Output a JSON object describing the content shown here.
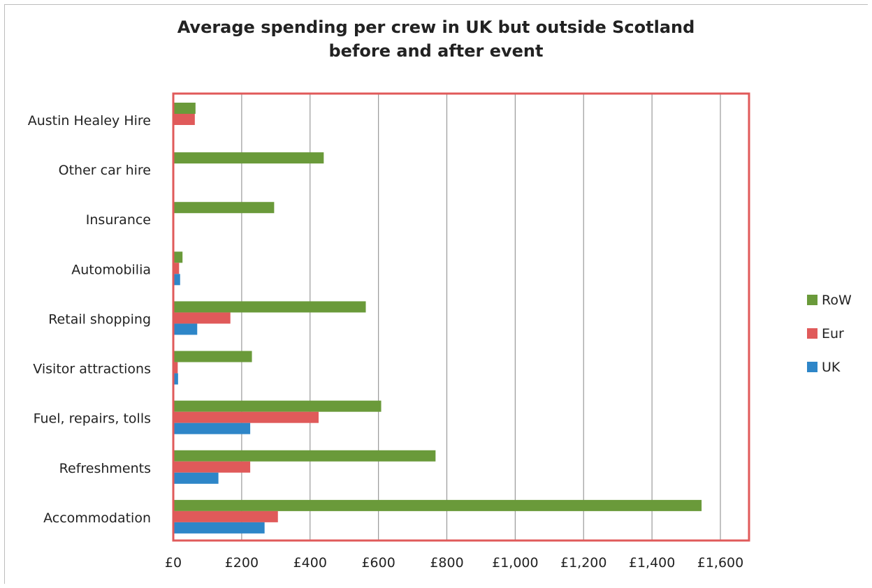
{
  "chart_data": {
    "type": "bar",
    "orientation": "horizontal",
    "title_lines": [
      "Average spending per crew in UK but outside Scotland",
      "before and after event"
    ],
    "categories": [
      "Austin Healey Hire",
      "Other car hire",
      "Insurance",
      "Automobilia",
      "Retail shopping",
      "Visitor attractions",
      "Fuel, repairs, tolls",
      "Refreshments",
      "Accommodation"
    ],
    "series": [
      {
        "name": "RoW",
        "color": "#6a9a3a",
        "values": [
          65,
          440,
          295,
          27,
          563,
          230,
          608,
          767,
          1545
        ]
      },
      {
        "name": "Eur",
        "color": "#e05a5a",
        "values": [
          63,
          0,
          0,
          17,
          167,
          13,
          425,
          225,
          306
        ]
      },
      {
        "name": "UK",
        "color": "#2e86c8",
        "values": [
          0,
          0,
          0,
          20,
          70,
          14,
          225,
          132,
          267
        ]
      }
    ],
    "x_ticks": [
      "£0",
      "£200",
      "£400",
      "£600",
      "£800",
      "£1,000",
      "£1,200",
      "£1,400",
      "£1,600"
    ],
    "xlim": [
      0,
      1600
    ],
    "grid": true,
    "legend_position": "right",
    "plot_border_color": "#e05a5a"
  }
}
